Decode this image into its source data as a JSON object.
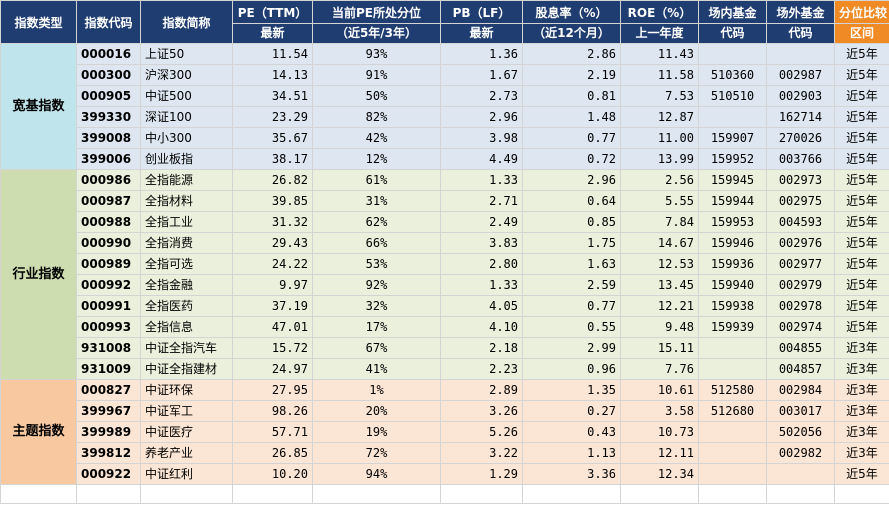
{
  "headers": {
    "type": "指数类型",
    "code": "指数代码",
    "name": "指数简称",
    "pe": [
      "PE（TTM）",
      "最新"
    ],
    "pe_pct": [
      "当前PE所处分位",
      "（近5年/3年）"
    ],
    "pb": [
      "PB（LF）",
      "最新"
    ],
    "div": [
      "股息率（%）",
      "（近12个月）"
    ],
    "roe": [
      "ROE（%）",
      "上一年度"
    ],
    "fund_in": [
      "场内基金",
      "代码"
    ],
    "fund_out": [
      "场外基金",
      "代码"
    ],
    "window": [
      "分位比较",
      "区间"
    ]
  },
  "groups": [
    {
      "label": "宽基指数",
      "rows": [
        {
          "code": "000016",
          "name": "上证50",
          "pe": "11.54",
          "pct": "93%",
          "pb": "1.36",
          "div": "2.86",
          "roe": "11.43",
          "fin": "",
          "fout": "",
          "win": "近5年"
        },
        {
          "code": "000300",
          "name": "沪深300",
          "pe": "14.13",
          "pct": "91%",
          "pb": "1.67",
          "div": "2.19",
          "roe": "11.58",
          "fin": "510360",
          "fout": "002987",
          "win": "近5年"
        },
        {
          "code": "000905",
          "name": "中证500",
          "pe": "34.51",
          "pct": "50%",
          "pb": "2.73",
          "div": "0.81",
          "roe": "7.53",
          "fin": "510510",
          "fout": "002903",
          "win": "近5年"
        },
        {
          "code": "399330",
          "name": "深证100",
          "pe": "23.29",
          "pct": "82%",
          "pb": "2.96",
          "div": "1.48",
          "roe": "12.87",
          "fin": "",
          "fout": "162714",
          "win": "近5年"
        },
        {
          "code": "399008",
          "name": "中小300",
          "pe": "35.67",
          "pct": "42%",
          "pb": "3.98",
          "div": "0.77",
          "roe": "11.00",
          "fin": "159907",
          "fout": "270026",
          "win": "近5年"
        },
        {
          "code": "399006",
          "name": "创业板指",
          "pe": "38.17",
          "pct": "12%",
          "pb": "4.49",
          "div": "0.72",
          "roe": "13.99",
          "fin": "159952",
          "fout": "003766",
          "win": "近5年"
        }
      ]
    },
    {
      "label": "行业指数",
      "rows": [
        {
          "code": "000986",
          "name": "全指能源",
          "pe": "26.82",
          "pct": "61%",
          "pb": "1.33",
          "div": "2.96",
          "roe": "2.56",
          "fin": "159945",
          "fout": "002973",
          "win": "近5年"
        },
        {
          "code": "000987",
          "name": "全指材料",
          "pe": "39.85",
          "pct": "31%",
          "pb": "2.71",
          "div": "0.64",
          "roe": "5.55",
          "fin": "159944",
          "fout": "002975",
          "win": "近5年"
        },
        {
          "code": "000988",
          "name": "全指工业",
          "pe": "31.32",
          "pct": "62%",
          "pb": "2.49",
          "div": "0.85",
          "roe": "7.84",
          "fin": "159953",
          "fout": "004593",
          "win": "近5年"
        },
        {
          "code": "000990",
          "name": "全指消费",
          "pe": "29.43",
          "pct": "66%",
          "pb": "3.83",
          "div": "1.75",
          "roe": "14.67",
          "fin": "159946",
          "fout": "002976",
          "win": "近5年"
        },
        {
          "code": "000989",
          "name": "全指可选",
          "pe": "24.22",
          "pct": "53%",
          "pb": "2.80",
          "div": "1.63",
          "roe": "12.53",
          "fin": "159936",
          "fout": "002977",
          "win": "近5年"
        },
        {
          "code": "000992",
          "name": "全指金融",
          "pe": "9.97",
          "pct": "92%",
          "pb": "1.33",
          "div": "2.59",
          "roe": "13.45",
          "fin": "159940",
          "fout": "002979",
          "win": "近5年"
        },
        {
          "code": "000991",
          "name": "全指医药",
          "pe": "37.19",
          "pct": "32%",
          "pb": "4.05",
          "div": "0.77",
          "roe": "12.21",
          "fin": "159938",
          "fout": "002978",
          "win": "近5年"
        },
        {
          "code": "000993",
          "name": "全指信息",
          "pe": "47.01",
          "pct": "17%",
          "pb": "4.10",
          "div": "0.55",
          "roe": "9.48",
          "fin": "159939",
          "fout": "002974",
          "win": "近5年"
        },
        {
          "code": "931008",
          "name": "中证全指汽车",
          "pe": "15.72",
          "pct": "67%",
          "pb": "2.18",
          "div": "2.99",
          "roe": "15.11",
          "fin": "",
          "fout": "004855",
          "win": "近3年"
        },
        {
          "code": "931009",
          "name": "中证全指建材",
          "pe": "24.97",
          "pct": "41%",
          "pb": "2.23",
          "div": "0.96",
          "roe": "7.76",
          "fin": "",
          "fout": "004857",
          "win": "近3年"
        }
      ]
    },
    {
      "label": "主题指数",
      "rows": [
        {
          "code": "000827",
          "name": "中证环保",
          "pe": "27.95",
          "pct": "1%",
          "pb": "2.89",
          "div": "1.35",
          "roe": "10.61",
          "fin": "512580",
          "fout": "002984",
          "win": "近3年"
        },
        {
          "code": "399967",
          "name": "中证军工",
          "pe": "98.26",
          "pct": "20%",
          "pb": "3.26",
          "div": "0.27",
          "roe": "3.58",
          "fin": "512680",
          "fout": "003017",
          "win": "近3年"
        },
        {
          "code": "399989",
          "name": "中证医疗",
          "pe": "57.71",
          "pct": "19%",
          "pb": "5.26",
          "div": "0.43",
          "roe": "10.73",
          "fin": "",
          "fout": "502056",
          "win": "近3年"
        },
        {
          "code": "399812",
          "name": "养老产业",
          "pe": "26.85",
          "pct": "72%",
          "pb": "3.22",
          "div": "1.13",
          "roe": "12.11",
          "fin": "",
          "fout": "002982",
          "win": "近3年"
        },
        {
          "code": "000922",
          "name": "中证红利",
          "pe": "10.20",
          "pct": "94%",
          "pb": "1.29",
          "div": "3.36",
          "roe": "12.34",
          "fin": "",
          "fout": "",
          "win": "近5年"
        }
      ]
    }
  ]
}
